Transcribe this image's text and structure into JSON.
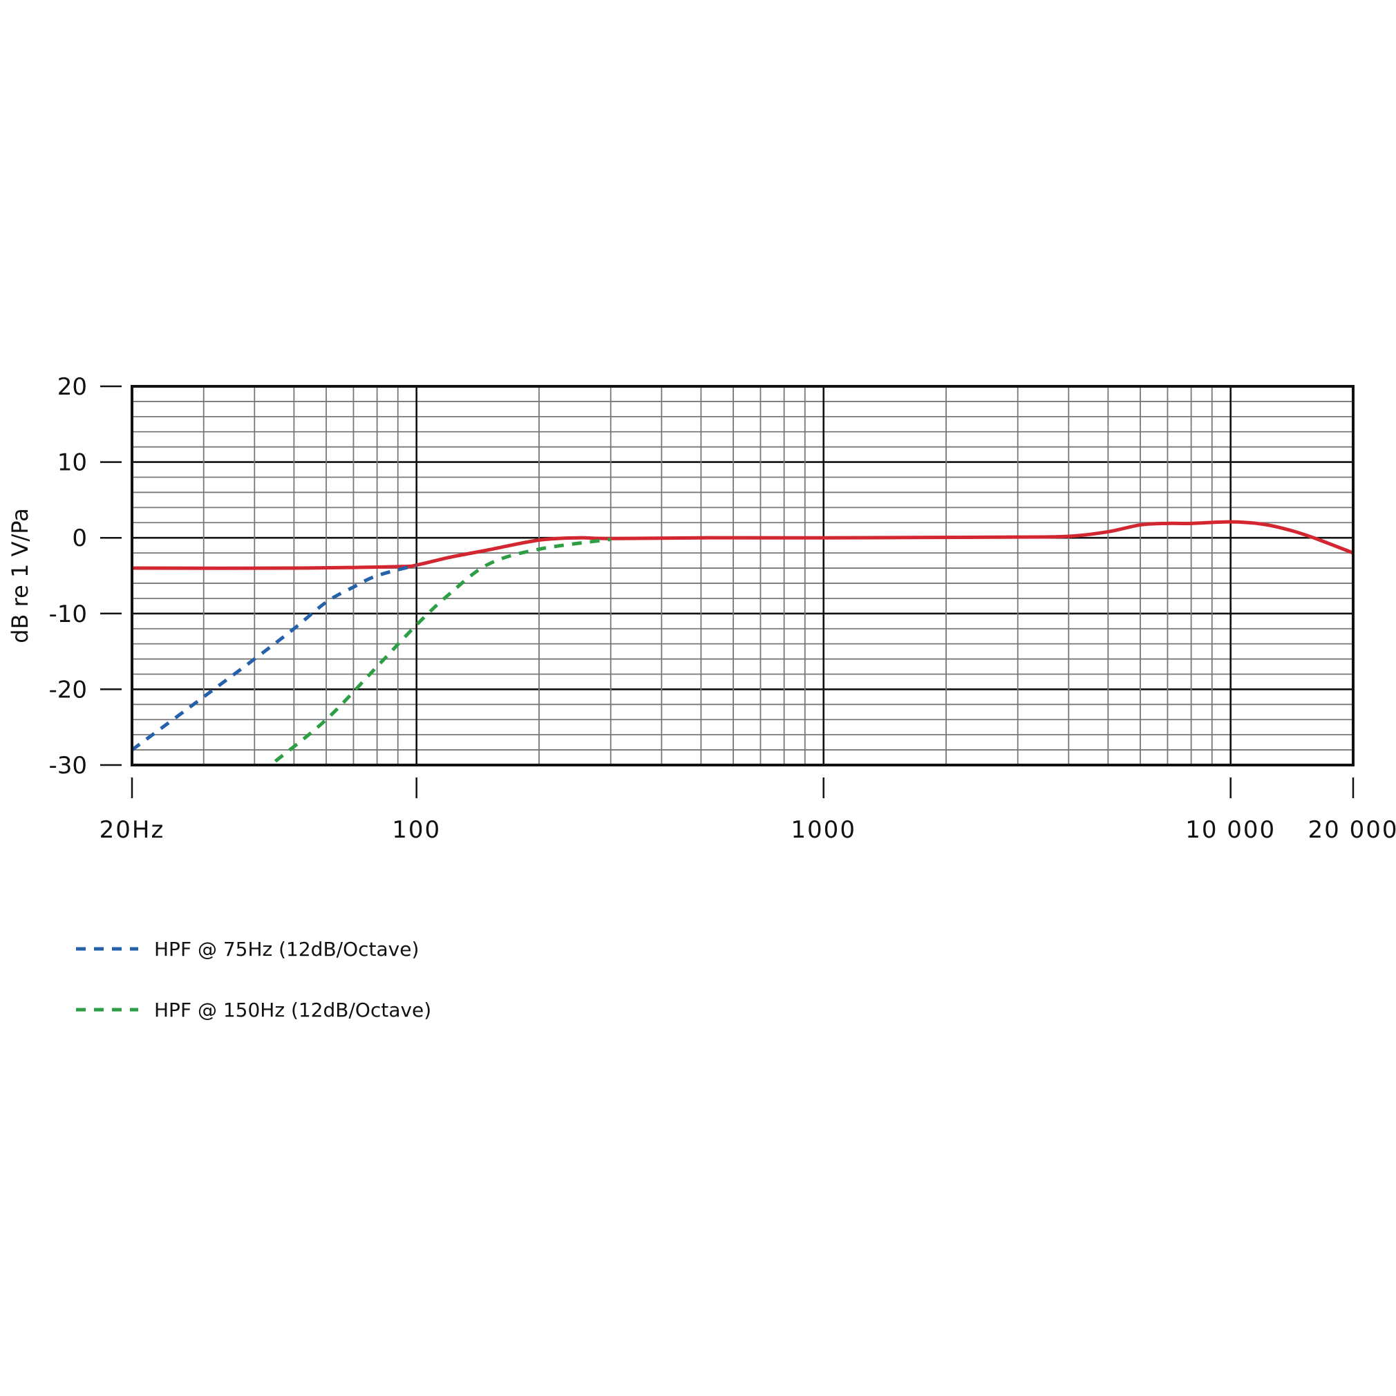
{
  "chart_data": {
    "type": "line",
    "title": "",
    "xlabel": "",
    "ylabel": "dB re 1 V/Pa",
    "x_scale": "log",
    "xlim": [
      20,
      20000
    ],
    "ylim": [
      -30,
      20
    ],
    "grid": true,
    "legend_placement": "bottom-left",
    "x_tick_labels": [
      {
        "value": 20,
        "label": "20Hz"
      },
      {
        "value": 100,
        "label": "100"
      },
      {
        "value": 1000,
        "label": "1000"
      },
      {
        "value": 10000,
        "label": "10 000"
      },
      {
        "value": 20000,
        "label": "20 000"
      }
    ],
    "y_ticks": [
      20,
      10,
      0,
      -10,
      -20,
      -30
    ],
    "series": [
      {
        "color": "#d22630",
        "style": "solid",
        "x": [
          20,
          50,
          90,
          100,
          120,
          150,
          200,
          250,
          300,
          500,
          1000,
          3000,
          4000,
          5000,
          6000,
          7000,
          8000,
          10000,
          12000,
          14000,
          16000,
          20000
        ],
        "y": [
          -4,
          -4,
          -3.8,
          -3.6,
          -2.6,
          -1.6,
          -0.3,
          0,
          -0.1,
          0,
          0,
          0.1,
          0.2,
          0.8,
          1.7,
          1.9,
          1.9,
          2.1,
          1.8,
          1.0,
          0,
          -2
        ]
      },
      {
        "name": "HPF @ 75Hz (12dB/Octave)",
        "color": "#2461a8",
        "style": "dashed",
        "x": [
          20,
          30,
          40,
          50,
          60,
          70,
          80,
          100
        ],
        "y": [
          -28,
          -21,
          -16,
          -12,
          -8.5,
          -6.5,
          -5,
          -3.6
        ]
      },
      {
        "name": "HPF @ 150Hz (12dB/Octave)",
        "color": "#2e9e44",
        "style": "dashed",
        "x": [
          45,
          60,
          80,
          100,
          120,
          150,
          200,
          300
        ],
        "y": [
          -29.5,
          -24,
          -17,
          -11.5,
          -7.5,
          -3.5,
          -1.5,
          -0.2
        ]
      }
    ]
  }
}
